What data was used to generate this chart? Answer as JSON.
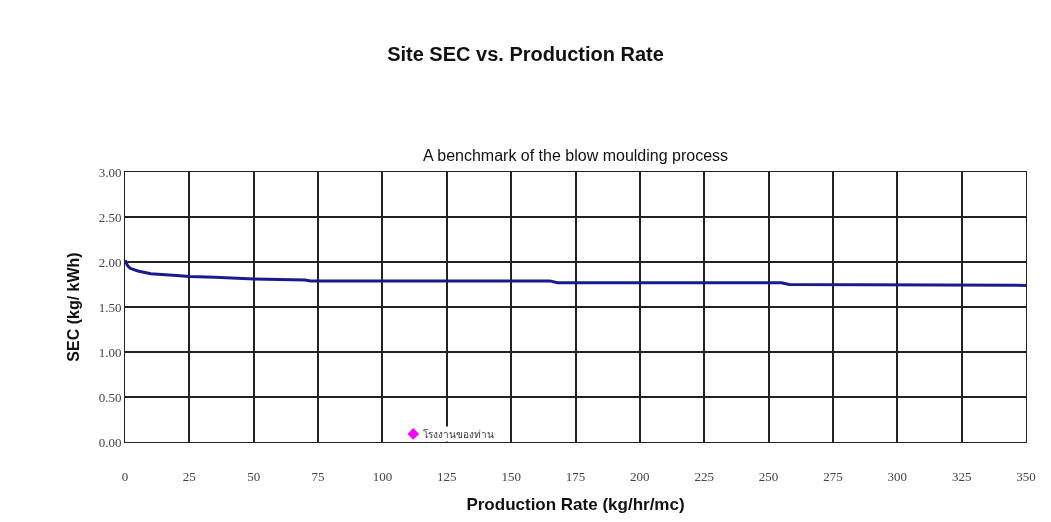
{
  "chart_data": {
    "type": "line",
    "title": "Site SEC vs. Production Rate",
    "subtitle": "A benchmark of the blow moulding process",
    "xlabel": "Production Rate (kg/hr/mc)",
    "ylabel": "SEC (kg/ kWh)",
    "xlim": [
      0,
      350
    ],
    "ylim": [
      0,
      3
    ],
    "xticks": [
      0,
      25,
      50,
      75,
      100,
      125,
      150,
      175,
      200,
      225,
      250,
      275,
      300,
      325,
      350
    ],
    "yticks": [
      {
        "value": 0,
        "label": "0.00"
      },
      {
        "value": 0.5,
        "label": "0.50"
      },
      {
        "value": 1,
        "label": "1.00"
      },
      {
        "value": 1.5,
        "label": "1.50"
      },
      {
        "value": 2,
        "label": "2.00"
      },
      {
        "value": 2.5,
        "label": "2.50"
      },
      {
        "value": 3,
        "label": "3.00"
      }
    ],
    "grid": true,
    "series": [
      {
        "color": "#1a1a8c",
        "marker": "none",
        "line_style": "solid",
        "x": [
          0,
          1,
          2,
          5,
          10,
          20,
          25,
          35,
          50,
          70,
          72,
          165,
          168,
          255,
          258,
          350
        ],
        "values": [
          2.02,
          1.96,
          1.93,
          1.9,
          1.87,
          1.85,
          1.84,
          1.83,
          1.81,
          1.8,
          1.79,
          1.79,
          1.77,
          1.77,
          1.75,
          1.74
        ]
      },
      {
        "type": "scatter",
        "name": "โรงงานของท่าน",
        "color": "#ff00ff",
        "marker": "diamond",
        "x": [
          112
        ],
        "values": [
          0.09
        ]
      }
    ]
  }
}
